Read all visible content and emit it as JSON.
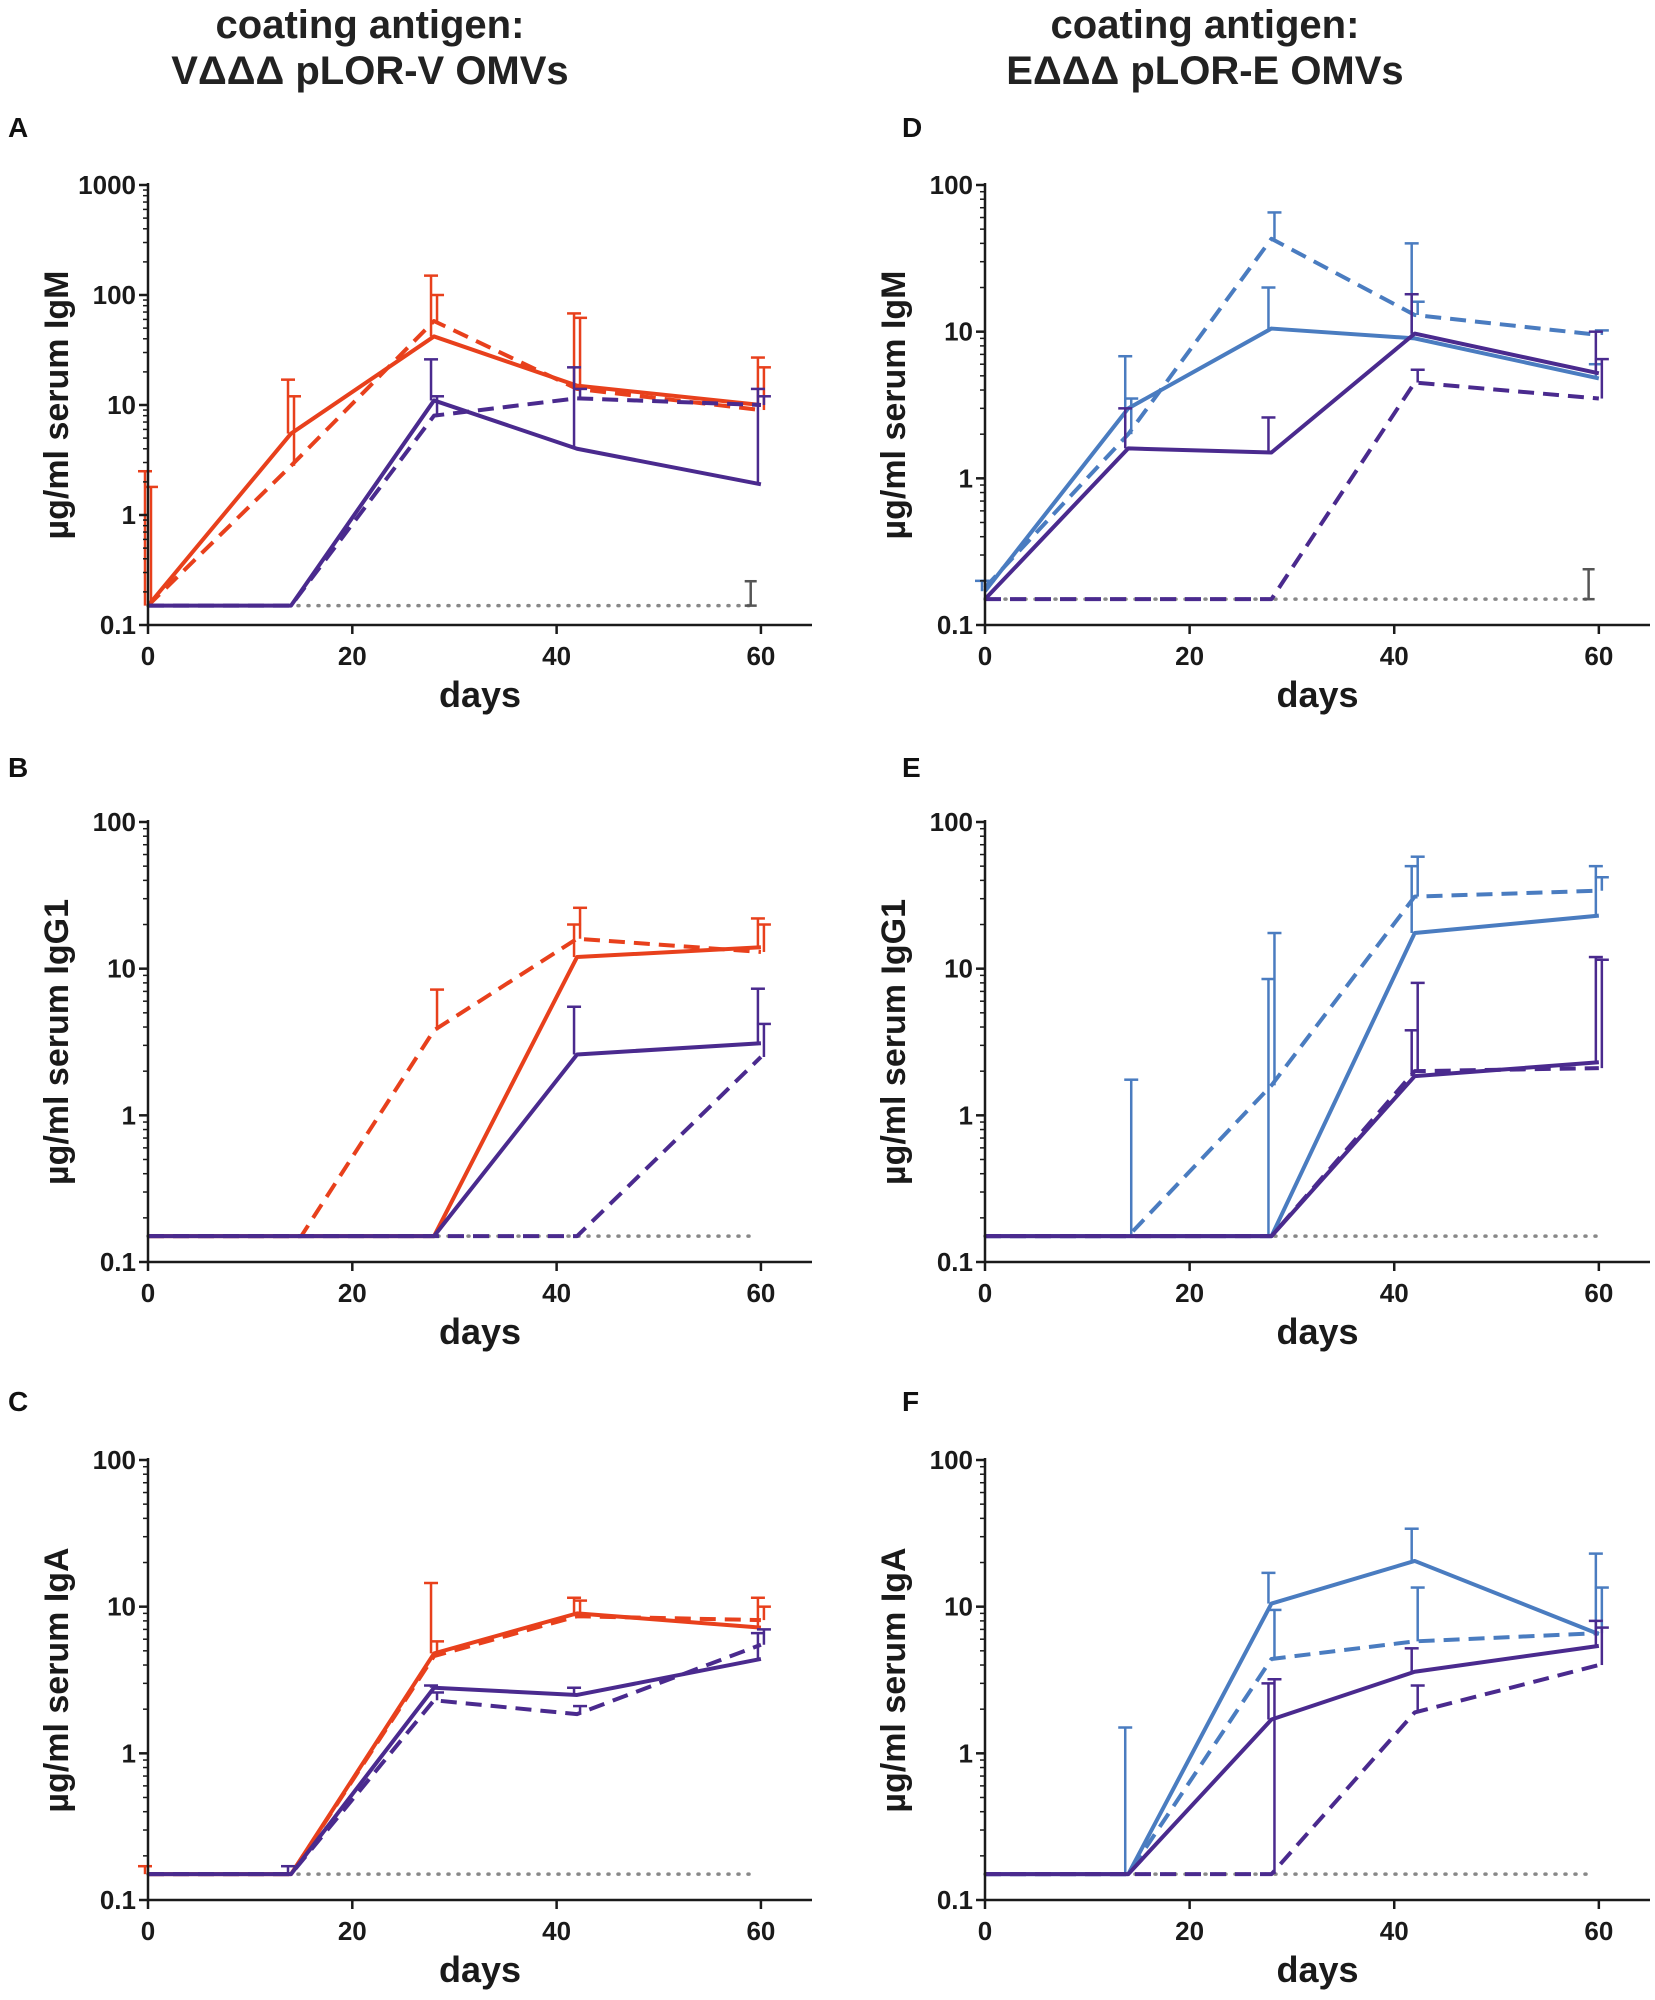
{
  "columns": [
    {
      "title_line1": "coating antigen:",
      "title_line2": "VΔΔΔ pLOR-V OMVs"
    },
    {
      "title_line1": "coating antigen:",
      "title_line2": "EΔΔΔ pLOR-E OMVs"
    }
  ],
  "colors": {
    "red": "#e8401c",
    "purple": "#4a2a8e",
    "blue": "#4a7cc0",
    "baseline": "#888888",
    "axis": "#1a1a1a"
  },
  "chart_data": [
    {
      "panel": "A",
      "type": "line",
      "xlabel": "days",
      "ylabel": "µg/ml serum  IgM",
      "yscale": "log",
      "ylim": [
        0.1,
        1000
      ],
      "yticks": [
        0.1,
        1,
        10,
        100,
        1000
      ],
      "yticklabels": [
        "0.1",
        "1",
        "10",
        "100",
        "1000"
      ],
      "xlim": [
        0,
        65
      ],
      "xticks": [
        0,
        20,
        40,
        60
      ],
      "xticklabels": [
        "0",
        "20",
        "40",
        "60"
      ],
      "baseline": {
        "value": 0.15,
        "x": [
          0,
          59
        ]
      },
      "ref_bar": {
        "x": 59,
        "low": 0.15,
        "high": 0.25
      },
      "series": [
        {
          "name": "red solid",
          "color": "red",
          "dash": false,
          "x": [
            0,
            14,
            28,
            42,
            60
          ],
          "y": [
            0.15,
            5.5,
            42,
            15,
            10
          ],
          "err": [
            2.5,
            17,
            150,
            68,
            27
          ]
        },
        {
          "name": "red dashed",
          "color": "red",
          "dash": true,
          "x": [
            0,
            14,
            28,
            42,
            60
          ],
          "y": [
            0.15,
            2.8,
            58,
            14,
            9
          ],
          "err": [
            1.8,
            12,
            100,
            62,
            22
          ]
        },
        {
          "name": "purple solid",
          "color": "purple",
          "dash": false,
          "x": [
            0,
            14,
            28,
            42,
            60
          ],
          "y": [
            0.15,
            0.15,
            11,
            4,
            1.9
          ],
          "err": [
            0.15,
            0.15,
            26,
            22,
            14
          ]
        },
        {
          "name": "purple dashed",
          "color": "purple",
          "dash": true,
          "x": [
            0,
            14,
            28,
            42,
            60
          ],
          "y": [
            0.15,
            0.15,
            8,
            11.5,
            10
          ],
          "err": [
            0.15,
            0.15,
            12,
            14,
            12
          ]
        }
      ]
    },
    {
      "panel": "B",
      "type": "line",
      "xlabel": "days",
      "ylabel": "µg/ml serum  IgG1",
      "yscale": "log",
      "ylim": [
        0.1,
        100
      ],
      "yticks": [
        0.1,
        1,
        10,
        100
      ],
      "yticklabels": [
        "0.1",
        "1",
        "10",
        "100"
      ],
      "xlim": [
        0,
        65
      ],
      "xticks": [
        0,
        20,
        40,
        60
      ],
      "xticklabels": [
        "0",
        "20",
        "40",
        "60"
      ],
      "baseline": {
        "value": 0.15,
        "x": [
          0,
          59
        ]
      },
      "series": [
        {
          "name": "red solid",
          "color": "red",
          "dash": false,
          "x": [
            0,
            14,
            28,
            42,
            60
          ],
          "y": [
            0.15,
            0.15,
            0.15,
            12,
            14
          ],
          "err": [
            null,
            null,
            null,
            20,
            22
          ]
        },
        {
          "name": "red dashed",
          "color": "red",
          "dash": true,
          "x": [
            0,
            15,
            28,
            42,
            60
          ],
          "y": [
            0.15,
            0.15,
            3.8,
            16,
            13
          ],
          "err": [
            null,
            null,
            7.2,
            26,
            20
          ]
        },
        {
          "name": "purple solid",
          "color": "purple",
          "dash": false,
          "x": [
            0,
            14,
            28,
            42,
            60
          ],
          "y": [
            0.15,
            0.15,
            0.15,
            2.6,
            3.1
          ],
          "err": [
            null,
            null,
            null,
            5.5,
            7.3
          ]
        },
        {
          "name": "purple dashed",
          "color": "purple",
          "dash": true,
          "x": [
            0,
            14,
            28,
            42,
            60
          ],
          "y": [
            0.15,
            0.15,
            0.15,
            0.15,
            2.5
          ],
          "err": [
            null,
            null,
            null,
            null,
            4.2
          ]
        }
      ]
    },
    {
      "panel": "C",
      "type": "line",
      "xlabel": "days",
      "ylabel": "µg/ml serum  IgA",
      "yscale": "log",
      "ylim": [
        0.1,
        100
      ],
      "yticks": [
        0.1,
        1,
        10,
        100
      ],
      "yticklabels": [
        "0.1",
        "1",
        "10",
        "100"
      ],
      "xlim": [
        0,
        65
      ],
      "xticks": [
        0,
        20,
        40,
        60
      ],
      "xticklabels": [
        "0",
        "20",
        "40",
        "60"
      ],
      "baseline": {
        "value": 0.15,
        "x": [
          0,
          59
        ]
      },
      "series": [
        {
          "name": "red solid",
          "color": "red",
          "dash": false,
          "x": [
            0,
            14,
            28,
            42,
            60
          ],
          "y": [
            0.15,
            0.15,
            4.8,
            9,
            7.2
          ],
          "err": [
            0.17,
            null,
            14.5,
            11.5,
            11.5
          ]
        },
        {
          "name": "red dashed",
          "color": "red",
          "dash": true,
          "x": [
            0,
            14,
            28,
            42,
            60
          ],
          "y": [
            0.15,
            0.15,
            4.6,
            8.6,
            8.1
          ],
          "err": [
            null,
            null,
            5.8,
            11,
            10
          ]
        },
        {
          "name": "purple solid",
          "color": "purple",
          "dash": false,
          "x": [
            0,
            14,
            28,
            42,
            60
          ],
          "y": [
            0.15,
            0.15,
            2.8,
            2.5,
            4.4
          ],
          "err": [
            null,
            0.17,
            2.9,
            2.8,
            6.6
          ]
        },
        {
          "name": "purple dashed",
          "color": "purple",
          "dash": true,
          "x": [
            0,
            14,
            28,
            42,
            60
          ],
          "y": [
            0.15,
            0.15,
            2.3,
            1.85,
            5.5
          ],
          "err": [
            null,
            null,
            2.6,
            2.1,
            7
          ]
        }
      ]
    },
    {
      "panel": "D",
      "type": "line",
      "xlabel": "days",
      "ylabel": "µg/ml serum  IgM",
      "yscale": "log",
      "ylim": [
        0.1,
        100
      ],
      "yticks": [
        0.1,
        1,
        10,
        100
      ],
      "yticklabels": [
        "0.1",
        "1",
        "10",
        "100"
      ],
      "xlim": [
        0,
        65
      ],
      "xticks": [
        0,
        20,
        40,
        60
      ],
      "xticklabels": [
        "0",
        "20",
        "40",
        "60"
      ],
      "baseline": {
        "value": 0.15,
        "x": [
          0,
          59
        ]
      },
      "ref_bar": {
        "x": 59,
        "low": 0.15,
        "high": 0.24
      },
      "series": [
        {
          "name": "blue solid",
          "color": "blue",
          "dash": false,
          "x": [
            0,
            14,
            28,
            42,
            60
          ],
          "y": [
            0.17,
            3,
            10.5,
            9,
            4.8
          ],
          "err": [
            0.2,
            6.8,
            20,
            40,
            6
          ]
        },
        {
          "name": "blue dashed",
          "color": "blue",
          "dash": true,
          "x": [
            0,
            14,
            28,
            42,
            60
          ],
          "y": [
            0.18,
            2,
            43,
            13,
            9.5
          ],
          "err": [
            0.2,
            3.5,
            65,
            16,
            10.2
          ]
        },
        {
          "name": "purple solid",
          "color": "purple",
          "dash": false,
          "x": [
            0,
            14,
            28,
            42,
            60
          ],
          "y": [
            0.15,
            1.6,
            1.5,
            9.7,
            5.2
          ],
          "err": [
            null,
            3,
            2.6,
            18,
            10
          ]
        },
        {
          "name": "purple dashed",
          "color": "purple",
          "dash": true,
          "x": [
            0,
            14,
            28,
            42,
            60
          ],
          "y": [
            0.15,
            0.15,
            0.15,
            4.5,
            3.5
          ],
          "err": [
            null,
            null,
            null,
            5.5,
            6.5
          ]
        }
      ]
    },
    {
      "panel": "E",
      "type": "line",
      "xlabel": "days",
      "ylabel": "µg/ml serum  IgG1",
      "yscale": "log",
      "ylim": [
        0.1,
        100
      ],
      "yticks": [
        0.1,
        1,
        10,
        100
      ],
      "yticklabels": [
        "0.1",
        "1",
        "10",
        "100"
      ],
      "xlim": [
        0,
        65
      ],
      "xticks": [
        0,
        20,
        40,
        60
      ],
      "xticklabels": [
        "0",
        "20",
        "40",
        "60"
      ],
      "baseline": {
        "value": 0.15,
        "x": [
          0,
          60
        ]
      },
      "series": [
        {
          "name": "blue solid",
          "color": "blue",
          "dash": false,
          "x": [
            0,
            14,
            28,
            42,
            60
          ],
          "y": [
            0.15,
            0.15,
            0.15,
            17.5,
            23
          ],
          "err": [
            null,
            null,
            8.5,
            50,
            50
          ]
        },
        {
          "name": "blue dashed",
          "color": "blue",
          "dash": true,
          "x": [
            0,
            14,
            28,
            42,
            60
          ],
          "y": [
            0.15,
            0.15,
            1.6,
            31,
            34
          ],
          "err": [
            null,
            1.75,
            17.5,
            58,
            42
          ]
        },
        {
          "name": "purple solid",
          "color": "purple",
          "dash": false,
          "x": [
            0,
            14,
            28,
            42,
            60
          ],
          "y": [
            0.15,
            0.15,
            0.15,
            1.85,
            2.3
          ],
          "err": [
            null,
            null,
            null,
            3.8,
            12
          ]
        },
        {
          "name": "purple dashed",
          "color": "purple",
          "dash": true,
          "x": [
            0,
            14,
            28,
            42,
            60
          ],
          "y": [
            0.15,
            0.15,
            0.15,
            2,
            2.1
          ],
          "err": [
            null,
            null,
            null,
            8,
            11.5
          ]
        }
      ]
    },
    {
      "panel": "F",
      "type": "line",
      "xlabel": "days",
      "ylabel": "µg/ml serum  IgA",
      "yscale": "log",
      "ylim": [
        0.1,
        100
      ],
      "yticks": [
        0.1,
        1,
        10,
        100
      ],
      "yticklabels": [
        "0.1",
        "1",
        "10",
        "100"
      ],
      "xlim": [
        0,
        65
      ],
      "xticks": [
        0,
        20,
        40,
        60
      ],
      "xticklabels": [
        "0",
        "20",
        "40",
        "60"
      ],
      "baseline": {
        "value": 0.15,
        "x": [
          0,
          59
        ]
      },
      "series": [
        {
          "name": "blue solid",
          "color": "blue",
          "dash": false,
          "x": [
            0,
            14,
            28,
            42,
            60
          ],
          "y": [
            0.15,
            0.15,
            10.5,
            20.5,
            6.5
          ],
          "err": [
            null,
            1.5,
            17,
            34,
            23
          ]
        },
        {
          "name": "blue dashed",
          "color": "blue",
          "dash": true,
          "x": [
            0,
            14,
            28,
            42,
            60
          ],
          "y": [
            0.15,
            0.15,
            4.4,
            5.8,
            6.6
          ],
          "err": [
            null,
            null,
            9.5,
            13.5,
            13.5
          ]
        },
        {
          "name": "purple solid",
          "color": "purple",
          "dash": false,
          "x": [
            0,
            14,
            28,
            42,
            60
          ],
          "y": [
            0.15,
            0.15,
            1.7,
            3.6,
            5.4
          ],
          "err": [
            null,
            null,
            3,
            5.2,
            8
          ]
        },
        {
          "name": "purple dashed",
          "color": "purple",
          "dash": true,
          "x": [
            0,
            14,
            28,
            42,
            60
          ],
          "y": [
            0.15,
            0.15,
            0.15,
            1.9,
            4
          ],
          "err": [
            null,
            null,
            3.2,
            2.9,
            7.2
          ]
        }
      ]
    }
  ]
}
